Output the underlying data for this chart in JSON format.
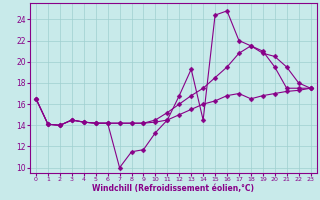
{
  "xlabel": "Windchill (Refroidissement éolien,°C)",
  "hours": [
    0,
    1,
    2,
    3,
    4,
    5,
    6,
    7,
    8,
    9,
    10,
    11,
    12,
    13,
    14,
    15,
    16,
    17,
    18,
    19,
    20,
    21,
    22,
    23
  ],
  "line_actual": [
    16.5,
    14.1,
    14.0,
    14.5,
    14.3,
    14.2,
    14.2,
    10.0,
    11.5,
    11.7,
    13.3,
    14.5,
    16.8,
    19.3,
    14.5,
    24.4,
    24.8,
    22.0,
    21.5,
    21.0,
    19.5,
    17.5,
    17.5,
    17.5
  ],
  "line_max": [
    16.5,
    14.1,
    14.0,
    14.5,
    14.3,
    14.2,
    14.2,
    14.2,
    14.2,
    14.2,
    14.5,
    15.2,
    16.0,
    16.8,
    17.5,
    18.5,
    19.5,
    20.8,
    21.5,
    20.8,
    20.5,
    19.5,
    18.0,
    17.5
  ],
  "line_min": [
    16.5,
    14.1,
    14.0,
    14.5,
    14.3,
    14.2,
    14.2,
    14.2,
    14.2,
    14.2,
    14.3,
    14.5,
    15.0,
    15.5,
    16.0,
    16.3,
    16.8,
    17.0,
    16.5,
    16.8,
    17.0,
    17.2,
    17.3,
    17.5
  ],
  "bg_color": "#c8eaea",
  "grid_color": "#9fcfcf",
  "line_color": "#880088",
  "markersize": 2.5,
  "ylim": [
    9.5,
    25.5
  ],
  "yticks": [
    10,
    12,
    14,
    16,
    18,
    20,
    22,
    24
  ],
  "xlim": [
    -0.5,
    23.5
  ],
  "figsize": [
    3.2,
    2.0
  ],
  "dpi": 100
}
